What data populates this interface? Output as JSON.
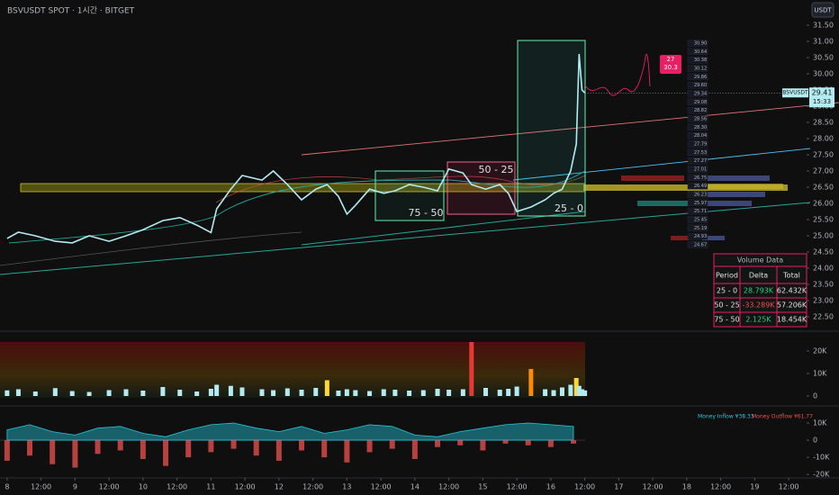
{
  "header": {
    "title": "BSVUSDT SPOT · 1시간 · BITGET",
    "currency": "USDT"
  },
  "chart_data": [
    {
      "type": "line",
      "color": "#b2ebf2",
      "x": [
        0,
        4,
        10,
        17,
        23,
        29,
        36,
        42,
        48,
        55,
        61,
        67,
        72,
        74,
        79,
        83,
        90,
        94,
        99,
        104,
        109,
        113,
        117,
        120,
        123,
        128,
        133,
        137,
        142,
        147,
        152,
        156,
        161,
        164,
        169,
        174,
        177,
        180,
        185,
        190,
        193,
        196,
        199,
        201,
        202,
        203,
        204
      ],
      "values": [
        24.92,
        25.11,
        25.0,
        24.83,
        24.78,
        25.0,
        24.83,
        25.0,
        25.19,
        25.47,
        25.56,
        25.33,
        25.1,
        25.83,
        26.44,
        26.86,
        26.72,
        27.0,
        26.58,
        26.11,
        26.44,
        26.58,
        26.22,
        25.67,
        25.94,
        26.44,
        26.31,
        26.39,
        26.58,
        26.5,
        26.39,
        27.06,
        26.94,
        26.58,
        26.44,
        26.58,
        26.31,
        25.75,
        25.89,
        26.11,
        26.31,
        26.44,
        27.0,
        27.83,
        30.61,
        29.5,
        29.41
      ],
      "xlim": [
        -2.5,
        282
      ],
      "xticks": [
        {
          "value": 0,
          "label": "8"
        },
        {
          "value": 12,
          "label": "12:00"
        },
        {
          "value": 24,
          "label": "9"
        },
        {
          "value": 36,
          "label": "12:00"
        },
        {
          "value": 48,
          "label": "10"
        },
        {
          "value": 60,
          "label": "12:00"
        },
        {
          "value": 72,
          "label": "11"
        },
        {
          "value": 84,
          "label": "12:00"
        },
        {
          "value": 96,
          "label": "12"
        },
        {
          "value": 108,
          "label": "12:00"
        },
        {
          "value": 120,
          "label": "13"
        },
        {
          "value": 132,
          "label": "12:00"
        },
        {
          "value": 144,
          "label": "14"
        },
        {
          "value": 156,
          "label": "12:00"
        },
        {
          "value": 168,
          "label": "15"
        },
        {
          "value": 180,
          "label": "12:00"
        },
        {
          "value": 192,
          "label": "16"
        },
        {
          "value": 204,
          "label": "12:00"
        },
        {
          "value": 216,
          "label": "17"
        },
        {
          "value": 228,
          "label": "12:00"
        },
        {
          "value": 240,
          "label": "18"
        },
        {
          "value": 252,
          "label": "12:00"
        },
        {
          "value": 264,
          "label": "19"
        },
        {
          "value": 276,
          "label": "12:00"
        }
      ],
      "ylim": [
        22.25,
        31.75
      ],
      "yticks": [
        {
          "value": 31.5,
          "label": "31.50"
        },
        {
          "value": 31,
          "label": "31.00"
        },
        {
          "value": 30.5,
          "label": "30.50"
        },
        {
          "value": 30,
          "label": "30.00"
        },
        {
          "value": 29.5,
          "label": "29.50"
        },
        {
          "value": 29,
          "label": "29.00"
        },
        {
          "value": 28.5,
          "label": "28.50"
        },
        {
          "value": 28,
          "label": "28.00"
        },
        {
          "value": 27.5,
          "label": "27.50"
        },
        {
          "value": 27,
          "label": "27.00"
        },
        {
          "value": 26.5,
          "label": "26.50"
        },
        {
          "value": 26,
          "label": "26.00"
        },
        {
          "value": 25.5,
          "label": "25.50"
        },
        {
          "value": 25,
          "label": "25.00"
        },
        {
          "value": 24.5,
          "label": "24.50"
        },
        {
          "value": 24,
          "label": "24.00"
        },
        {
          "value": 23.5,
          "label": "23.50"
        },
        {
          "value": 23,
          "label": "23.00"
        },
        {
          "value": 22.5,
          "label": "22.50"
        }
      ],
      "last": {
        "symbol": "BSVUSDT",
        "price": 29.41,
        "countdown": "15:33"
      },
      "box_labels": [
        "75 - 50",
        "50 - 25",
        "25 - 0"
      ],
      "target_label": [
        "27",
        "30.3"
      ],
      "ladder": [
        "30.90",
        "30.64",
        "30.38",
        "30.12",
        "29.86",
        "29.60",
        "29.34",
        "29.08",
        "28.82",
        "28.56",
        "28.30",
        "28.04",
        "27.79",
        "27.53",
        "27.27",
        "27.01",
        "26.75",
        "26.49",
        "26.23",
        "25.97",
        "25.71",
        "25.45",
        "25.19",
        "24.93",
        "24.67"
      ]
    },
    {
      "type": "bar",
      "color": "#b2ebf2",
      "x": [
        0,
        4,
        10,
        17,
        23,
        29,
        36,
        42,
        48,
        55,
        61,
        67,
        72,
        74,
        79,
        83,
        90,
        94,
        99,
        104,
        109,
        113,
        117,
        120,
        123,
        128,
        133,
        137,
        142,
        147,
        152,
        156,
        161,
        164,
        169,
        174,
        177,
        180,
        185,
        190,
        193,
        196,
        199,
        201,
        202,
        203,
        204
      ],
      "values": [
        2500,
        3000,
        2000,
        3500,
        2200,
        1800,
        2600,
        3000,
        2400,
        4000,
        2800,
        2000,
        3200,
        5000,
        4500,
        3800,
        3000,
        2600,
        3400,
        2800,
        3600,
        7000,
        2400,
        3000,
        2600,
        2200,
        3000,
        2800,
        2400,
        2600,
        3200,
        2800,
        3000,
        24000,
        3600,
        2800,
        3200,
        4200,
        12000,
        3000,
        2600,
        3800,
        5000,
        8000,
        4500,
        3000,
        2500
      ],
      "colors": [
        "#b2ebf2",
        "#b2ebf2",
        "#b2ebf2",
        "#b2ebf2",
        "#b2ebf2",
        "#b2ebf2",
        "#b2ebf2",
        "#b2ebf2",
        "#b2ebf2",
        "#b2ebf2",
        "#b2ebf2",
        "#b2ebf2",
        "#b2ebf2",
        "#b2ebf2",
        "#b2ebf2",
        "#b2ebf2",
        "#b2ebf2",
        "#b2ebf2",
        "#b2ebf2",
        "#b2ebf2",
        "#b2ebf2",
        "#fdd835",
        "#b2ebf2",
        "#b2ebf2",
        "#b2ebf2",
        "#b2ebf2",
        "#b2ebf2",
        "#b2ebf2",
        "#b2ebf2",
        "#b2ebf2",
        "#b2ebf2",
        "#b2ebf2",
        "#b2ebf2",
        "#e53935",
        "#b2ebf2",
        "#b2ebf2",
        "#b2ebf2",
        "#b2ebf2",
        "#fb8c00",
        "#b2ebf2",
        "#b2ebf2",
        "#b2ebf2",
        "#b2ebf2",
        "#fdd835",
        "#b2ebf2",
        "#b2ebf2",
        "#b2ebf2"
      ],
      "ylim": [
        0,
        24000
      ],
      "yticks": [
        {
          "value": 20000,
          "label": "20K"
        },
        {
          "value": 10000,
          "label": "10K"
        },
        0
      ]
    },
    {
      "type": "area",
      "x": [
        0,
        8,
        16,
        24,
        32,
        40,
        48,
        56,
        64,
        72,
        80,
        88,
        96,
        104,
        112,
        120,
        128,
        136,
        144,
        152,
        160,
        168,
        176,
        184,
        192,
        200
      ],
      "series": [
        {
          "name": "Money Inflow ¥38.33",
          "color": "#26c6da",
          "mark": "area",
          "values": [
            6000,
            9000,
            5000,
            3000,
            7000,
            8000,
            4000,
            2000,
            6000,
            9000,
            10000,
            7000,
            5000,
            8000,
            4000,
            6000,
            9000,
            8000,
            3000,
            2000,
            5000,
            7000,
            9000,
            10000,
            9000,
            8000
          ]
        },
        {
          "name": "Money Outflow ¥61.77",
          "color": "#ef5350",
          "mark": "bar",
          "values": [
            -12000,
            -9000,
            -14000,
            -16000,
            -8000,
            -6000,
            -11000,
            -15000,
            -10000,
            -7000,
            -5000,
            -9000,
            -12000,
            -6000,
            -10000,
            -13000,
            -7000,
            -5000,
            -11000,
            -4000,
            -3000,
            -6000,
            -2000,
            -3000,
            -4000,
            -2000
          ]
        }
      ],
      "ylim": [
        -22000,
        15000
      ],
      "yticks": [
        {
          "value": 10000,
          "label": "10K"
        },
        0,
        {
          "value": -10000,
          "label": "-10K"
        },
        {
          "value": -20000,
          "label": "-20K"
        }
      ]
    }
  ],
  "table": {
    "title": "Volume Data",
    "headers": [
      "Period",
      "Delta",
      "Total"
    ],
    "rows": [
      [
        "25 - 0",
        "28.793K",
        "62.432K"
      ],
      [
        "50 - 25",
        "-33.289K",
        "57.206K"
      ],
      [
        "75 - 50",
        "2.125K",
        "18.454K"
      ]
    ]
  }
}
